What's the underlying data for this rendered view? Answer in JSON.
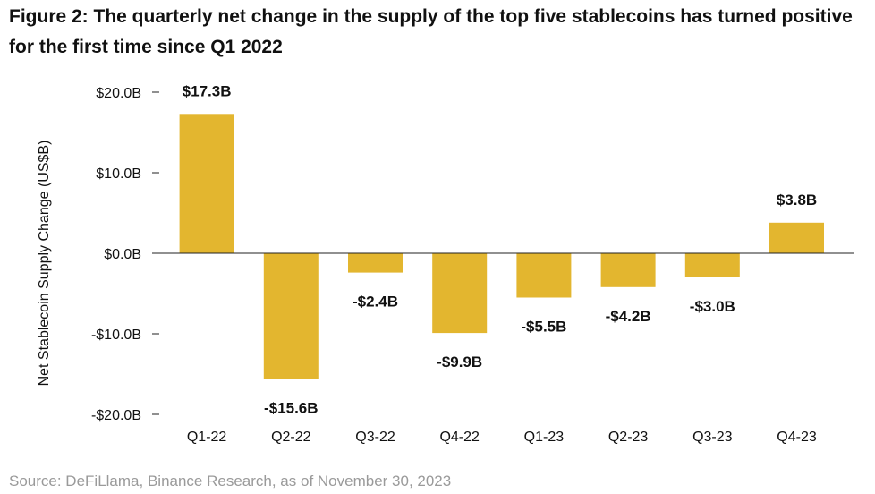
{
  "figure": {
    "title": "Figure 2: The quarterly net change in the supply of the top five stablecoins has turned positive for the first time since Q1 2022",
    "source": "Source: DeFiLlama, Binance Research, as of November 30, 2023"
  },
  "colors": {
    "bar": "#E3B62F",
    "axis": "#222222",
    "text": "#111111",
    "source": "#9A9A9A"
  },
  "chart_data": {
    "type": "bar",
    "title": "Figure 2: The quarterly net change in the supply of the top five stablecoins has turned positive for the first time since Q1 2022",
    "xlabel": "",
    "ylabel": "Net Stablecoin Supply Change (US$B)",
    "categories": [
      "Q1-22",
      "Q2-22",
      "Q3-22",
      "Q4-22",
      "Q1-23",
      "Q2-23",
      "Q3-23",
      "Q4-23"
    ],
    "values": [
      17.3,
      -15.6,
      -2.4,
      -9.9,
      -5.5,
      -4.2,
      -3.0,
      3.8
    ],
    "data_labels": [
      "$17.3B",
      "-$15.6B",
      "-$2.4B",
      "-$9.9B",
      "-$5.5B",
      "-$4.2B",
      "-$3.0B",
      "$3.8B"
    ],
    "ylim": [
      -20,
      20
    ],
    "yticks": [
      20,
      10,
      0,
      -10,
      -20
    ],
    "ytick_labels": [
      "$20.0B",
      "$10.0B",
      "$0.0B",
      "-$10.0B",
      "-$20.0B"
    ],
    "grid": false,
    "legend": "none"
  }
}
